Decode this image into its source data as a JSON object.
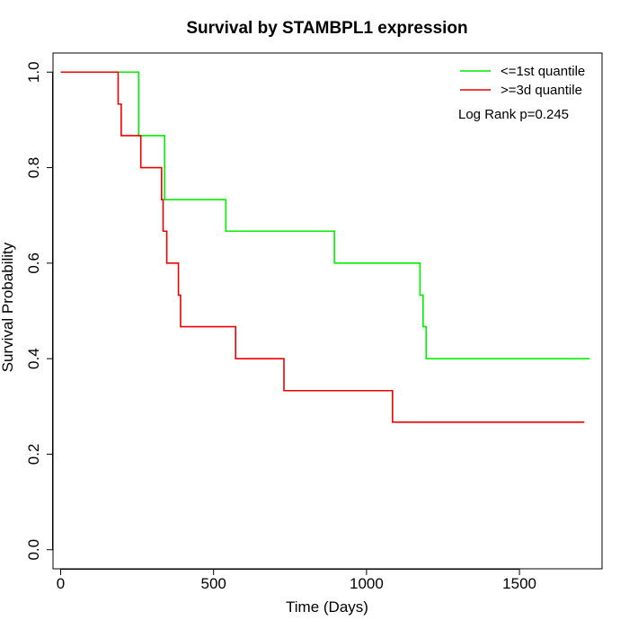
{
  "chart_data": {
    "type": "line",
    "title": "Survival by STAMBPL1 expression",
    "xlabel": "Time (Days)",
    "ylabel": "Survival Probability",
    "xlim": [
      -25,
      1770
    ],
    "ylim": [
      -0.04,
      1.04
    ],
    "x_ticks": [
      0,
      500,
      1000,
      1500
    ],
    "y_ticks": [
      0.0,
      0.2,
      0.4,
      0.6,
      0.8,
      1.0
    ],
    "x_tick_labels": [
      "0",
      "500",
      "1000",
      "1500"
    ],
    "y_tick_labels": [
      "0.0",
      "0.2",
      "0.4",
      "0.6",
      "0.8",
      "1.0"
    ],
    "grid": false,
    "legend_position": "top-right",
    "annotation": "Log Rank p=0.245",
    "series": [
      {
        "name": "<=1st quantile",
        "color": "#00ee00",
        "step_points": [
          [
            0,
            1.0
          ],
          [
            255,
            1.0
          ],
          [
            255,
            0.867
          ],
          [
            340,
            0.867
          ],
          [
            340,
            0.733
          ],
          [
            540,
            0.733
          ],
          [
            540,
            0.667
          ],
          [
            895,
            0.667
          ],
          [
            895,
            0.6
          ],
          [
            1175,
            0.6
          ],
          [
            1175,
            0.533
          ],
          [
            1185,
            0.533
          ],
          [
            1185,
            0.467
          ],
          [
            1195,
            0.467
          ],
          [
            1195,
            0.4
          ],
          [
            1730,
            0.4
          ]
        ]
      },
      {
        "name": ">=3d quantile",
        "color": "#ee0000",
        "step_points": [
          [
            0,
            1.0
          ],
          [
            188,
            1.0
          ],
          [
            188,
            0.933
          ],
          [
            198,
            0.933
          ],
          [
            198,
            0.867
          ],
          [
            262,
            0.867
          ],
          [
            262,
            0.8
          ],
          [
            330,
            0.8
          ],
          [
            330,
            0.733
          ],
          [
            335,
            0.733
          ],
          [
            335,
            0.667
          ],
          [
            347,
            0.667
          ],
          [
            347,
            0.6
          ],
          [
            385,
            0.6
          ],
          [
            385,
            0.533
          ],
          [
            392,
            0.533
          ],
          [
            392,
            0.467
          ],
          [
            572,
            0.467
          ],
          [
            572,
            0.4
          ],
          [
            730,
            0.4
          ],
          [
            730,
            0.333
          ],
          [
            1085,
            0.333
          ],
          [
            1085,
            0.267
          ],
          [
            1712,
            0.267
          ]
        ]
      }
    ]
  }
}
